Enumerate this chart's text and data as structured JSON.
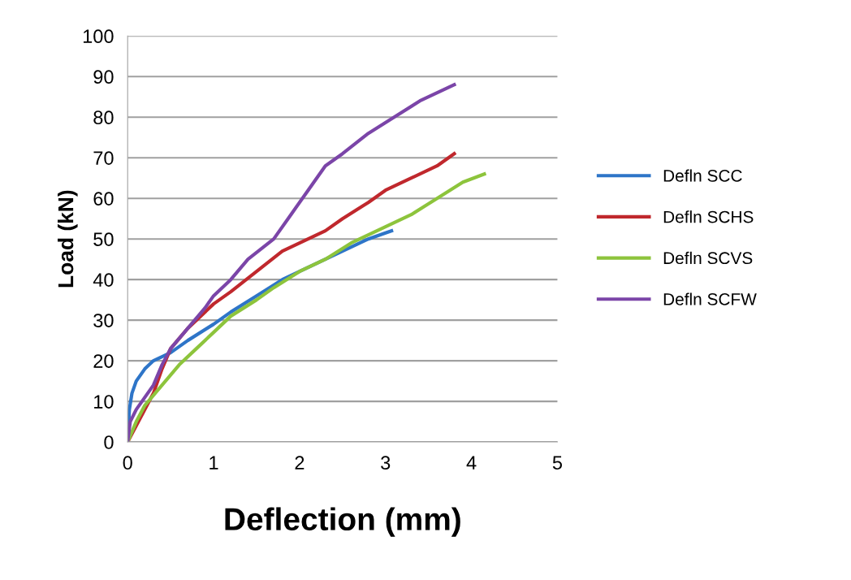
{
  "chart_data": {
    "type": "line",
    "xlabel": "Deflection (mm)",
    "ylabel": "Load (kN)",
    "xlim": [
      0,
      5
    ],
    "xticks": [
      0,
      1,
      2,
      3,
      4,
      5
    ],
    "ylim": [
      0,
      100
    ],
    "yticks": [
      0,
      10,
      20,
      30,
      40,
      50,
      60,
      70,
      80,
      90,
      100
    ],
    "grid": "y",
    "legend": "right",
    "marker": "none",
    "line_style": "solid",
    "series": [
      {
        "name": "Defln SCC",
        "color": "#2e75c8",
        "x": [
          0,
          0.02,
          0.05,
          0.1,
          0.2,
          0.3,
          0.5,
          0.7,
          1.0,
          1.2,
          1.5,
          1.8,
          2.0,
          2.3,
          2.6,
          2.8,
          3.0,
          3.07
        ],
        "values": [
          0,
          8,
          12,
          15,
          18,
          20,
          22,
          25,
          29,
          32,
          36,
          40,
          42,
          45,
          48,
          50,
          51.5,
          52
        ]
      },
      {
        "name": "Defln SCHS",
        "color": "#c0282d",
        "x": [
          0,
          0.1,
          0.2,
          0.3,
          0.4,
          0.5,
          0.7,
          0.9,
          1.0,
          1.2,
          1.5,
          1.8,
          2.0,
          2.3,
          2.5,
          2.8,
          3.0,
          3.3,
          3.6,
          3.8
        ],
        "values": [
          0,
          4,
          8,
          12,
          18,
          23,
          28,
          32,
          34,
          37,
          42,
          47,
          49,
          52,
          55,
          59,
          62,
          65,
          68,
          71
        ]
      },
      {
        "name": "Defln SCVS",
        "color": "#8dc43c",
        "x": [
          0,
          0.1,
          0.2,
          0.4,
          0.6,
          0.8,
          1.0,
          1.2,
          1.5,
          1.7,
          2.0,
          2.3,
          2.6,
          3.0,
          3.3,
          3.6,
          3.9,
          4.15
        ],
        "values": [
          0,
          5,
          9,
          14,
          19,
          23,
          27,
          31,
          35,
          38,
          42,
          45,
          49,
          53,
          56,
          60,
          64,
          66
        ]
      },
      {
        "name": "Defln SCFW",
        "color": "#7b45a8",
        "x": [
          0,
          0.03,
          0.1,
          0.3,
          0.4,
          0.5,
          0.7,
          0.9,
          1.0,
          1.2,
          1.4,
          1.7,
          1.9,
          2.1,
          2.3,
          2.5,
          2.8,
          3.1,
          3.4,
          3.8
        ],
        "values": [
          0,
          5,
          8,
          14,
          19,
          23,
          28,
          33,
          36,
          40,
          45,
          50,
          56,
          62,
          68,
          71,
          76,
          80,
          84,
          88
        ]
      }
    ]
  }
}
